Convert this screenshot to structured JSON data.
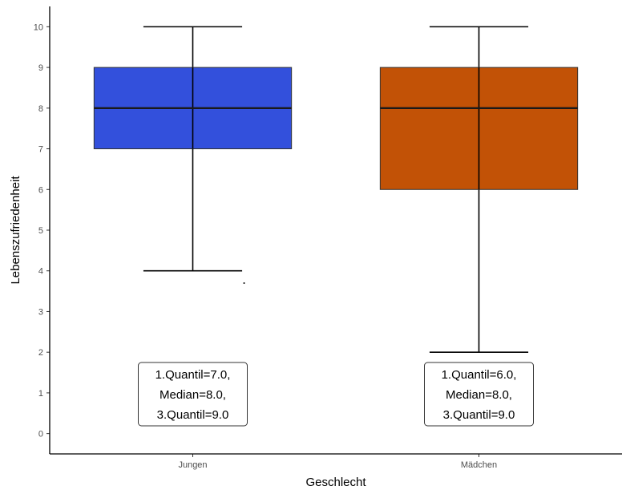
{
  "chart_data": {
    "type": "boxplot",
    "xlabel": "Geschlecht",
    "ylabel": "Lebenszufriedenheit",
    "ylim": [
      -0.5,
      10.5
    ],
    "yticks": [
      0,
      1,
      2,
      3,
      4,
      5,
      6,
      7,
      8,
      9,
      10
    ],
    "grid": false,
    "legend": "none",
    "categories": [
      "Jungen",
      "Mädchen"
    ],
    "boxes": [
      {
        "category": "Jungen",
        "whisker_low": 4,
        "q1": 7,
        "median": 8,
        "q3": 9,
        "whisker_high": 10,
        "outliers": [
          3.7
        ],
        "color": "#3350dc",
        "annotation": [
          "1.Quantil=7.0,",
          "Median=8.0,",
          "3.Quantil=9.0"
        ]
      },
      {
        "category": "Mädchen",
        "whisker_low": 2,
        "q1": 6,
        "median": 8,
        "q3": 9,
        "whisker_high": 10,
        "outliers": [],
        "color": "#c25206",
        "annotation": [
          "1.Quantil=6.0,",
          "Median=8.0,",
          "3.Quantil=9.0"
        ]
      }
    ]
  }
}
